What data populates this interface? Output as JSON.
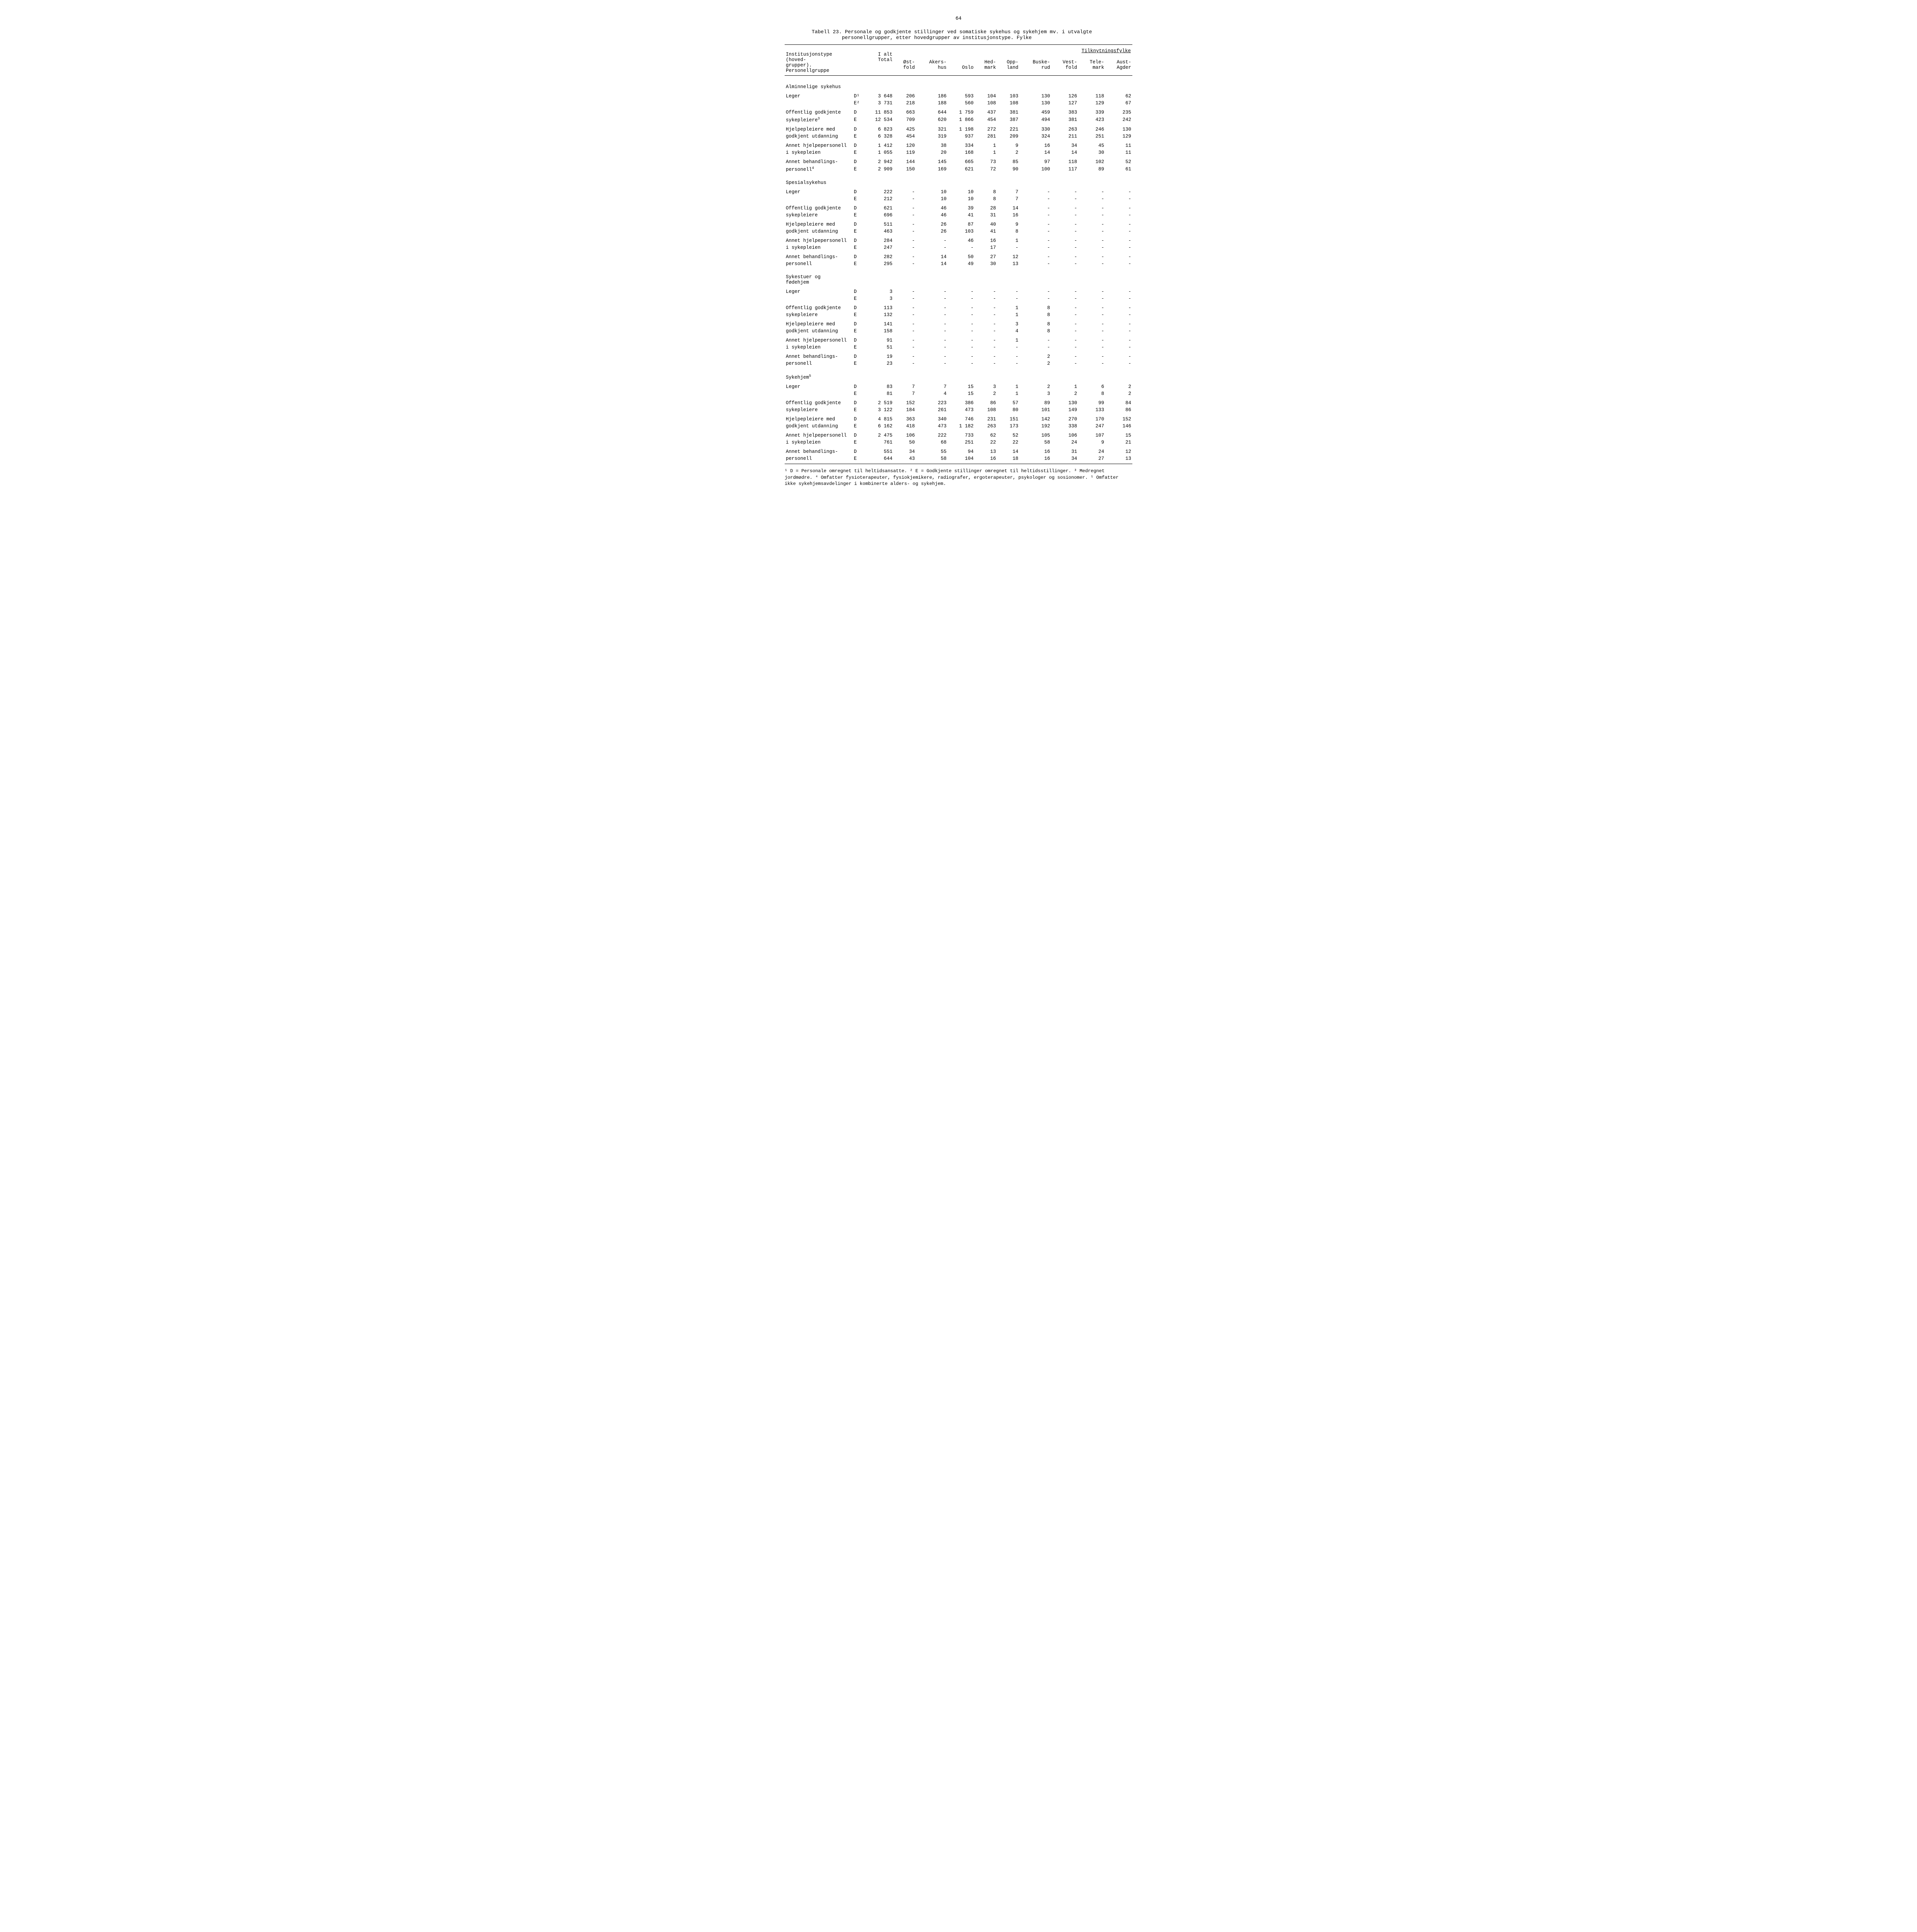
{
  "page_number": "64",
  "table_title_line1": "Tabell 23.  Personale og godkjente stillinger ved somatiske sykehus og sykehjem mv. i utvalgte",
  "table_title_line2": "personellgrupper, etter hovedgrupper av institusjonstype.  Fylke",
  "header": {
    "col1_line1": "Institusjonstype (hoved-",
    "col1_line2": "grupper). Personellgruppe",
    "col_ialt_line1": "I alt",
    "col_ialt_line2": "Total",
    "super_title": "Tilknytningsfylke",
    "cols": [
      {
        "l1": "Øst-",
        "l2": "fold"
      },
      {
        "l1": "Akers-",
        "l2": "hus"
      },
      {
        "l1": "",
        "l2": "Oslo"
      },
      {
        "l1": "Hed-",
        "l2": "mark"
      },
      {
        "l1": "Opp-",
        "l2": "land"
      },
      {
        "l1": "Buske-",
        "l2": "rud"
      },
      {
        "l1": "Vest-",
        "l2": "fold"
      },
      {
        "l1": "Tele-",
        "l2": "mark"
      },
      {
        "l1": "Aust-",
        "l2": "Agder"
      }
    ]
  },
  "de_labels": {
    "d": "D",
    "e": "E",
    "d1": "D¹",
    "e2": "E²"
  },
  "sections": [
    {
      "name": "Alminnelige sykehus",
      "groups": [
        {
          "label": "Leger",
          "sup": "",
          "de_d": "D¹",
          "de_e": "E²",
          "d": [
            "3 648",
            "206",
            "186",
            "593",
            "104",
            "103",
            "130",
            "126",
            "118",
            "62"
          ],
          "e": [
            "3 731",
            "218",
            "188",
            "560",
            "108",
            "108",
            "130",
            "127",
            "129",
            "67"
          ]
        },
        {
          "label": "Offentlig godkjente sykepleiere",
          "sup": "3",
          "de_d": "D",
          "de_e": "E",
          "d": [
            "11 853",
            "663",
            "644",
            "1 759",
            "437",
            "381",
            "459",
            "383",
            "339",
            "235"
          ],
          "e": [
            "12 534",
            "709",
            "620",
            "1 866",
            "454",
            "387",
            "494",
            "381",
            "423",
            "242"
          ]
        },
        {
          "label": "Hjelpepleiere med godkjent utdanning",
          "sup": "",
          "de_d": "D",
          "de_e": "E",
          "d": [
            "6 823",
            "425",
            "321",
            "1 198",
            "272",
            "221",
            "330",
            "263",
            "246",
            "130"
          ],
          "e": [
            "6 328",
            "454",
            "319",
            "937",
            "281",
            "209",
            "324",
            "211",
            "251",
            "129"
          ]
        },
        {
          "label": "Annet hjelpepersonell i sykepleien",
          "sup": "",
          "de_d": "D",
          "de_e": "E",
          "d": [
            "1 412",
            "120",
            "38",
            "334",
            "1",
            "9",
            "16",
            "34",
            "45",
            "11"
          ],
          "e": [
            "1 055",
            "119",
            "20",
            "168",
            "1",
            "2",
            "14",
            "14",
            "30",
            "11"
          ]
        },
        {
          "label": "Annet behandlings- personell",
          "sup": "4",
          "de_d": "D",
          "de_e": "E",
          "d": [
            "2 942",
            "144",
            "145",
            "665",
            "73",
            "85",
            "97",
            "118",
            "102",
            "52"
          ],
          "e": [
            "2 909",
            "150",
            "169",
            "621",
            "72",
            "90",
            "100",
            "117",
            "89",
            "61"
          ]
        }
      ]
    },
    {
      "name": "Spesialsykehus",
      "groups": [
        {
          "label": "Leger",
          "sup": "",
          "de_d": "D",
          "de_e": "E",
          "d": [
            "222",
            "-",
            "10",
            "10",
            "8",
            "7",
            "-",
            "-",
            "-",
            "-"
          ],
          "e": [
            "212",
            "-",
            "10",
            "10",
            "8",
            "7",
            "-",
            "-",
            "-",
            "-"
          ]
        },
        {
          "label": "Offentlig godkjente sykepleiere",
          "sup": "",
          "de_d": "D",
          "de_e": "E",
          "d": [
            "621",
            "-",
            "46",
            "39",
            "28",
            "14",
            "-",
            "-",
            "-",
            "-"
          ],
          "e": [
            "696",
            "-",
            "46",
            "41",
            "31",
            "16",
            "-",
            "-",
            "-",
            "-"
          ]
        },
        {
          "label": "Hjelpepleiere med godkjent utdanning",
          "sup": "",
          "de_d": "D",
          "de_e": "E",
          "d": [
            "511",
            "-",
            "26",
            "87",
            "40",
            "9",
            "-",
            "-",
            "-",
            "-"
          ],
          "e": [
            "463",
            "-",
            "26",
            "103",
            "41",
            "8",
            "-",
            "-",
            "-",
            "-"
          ]
        },
        {
          "label": "Annet hjelpepersonell i sykepleien",
          "sup": "",
          "de_d": "D",
          "de_e": "E",
          "d": [
            "284",
            "-",
            "-",
            "46",
            "16",
            "1",
            "-",
            "-",
            "-",
            "-"
          ],
          "e": [
            "247",
            "-",
            "-",
            "-",
            "17",
            "-",
            "-",
            "-",
            "-",
            "-"
          ]
        },
        {
          "label": "Annet behandlings- personell",
          "sup": "",
          "de_d": "D",
          "de_e": "E",
          "d": [
            "282",
            "-",
            "14",
            "50",
            "27",
            "12",
            "-",
            "-",
            "-",
            "-"
          ],
          "e": [
            "295",
            "-",
            "14",
            "49",
            "30",
            "13",
            "-",
            "-",
            "-",
            "-"
          ]
        }
      ]
    },
    {
      "name": "Sykestuer og fødehjem",
      "groups": [
        {
          "label": "Leger",
          "sup": "",
          "de_d": "D",
          "de_e": "E",
          "d": [
            "3",
            "-",
            "-",
            "-",
            "-",
            "-",
            "-",
            "-",
            "-",
            "-"
          ],
          "e": [
            "3",
            "-",
            "-",
            "-",
            "-",
            "-",
            "-",
            "-",
            "-",
            "-"
          ]
        },
        {
          "label": "Offentlig godkjente sykepleiere",
          "sup": "",
          "de_d": "D",
          "de_e": "E",
          "d": [
            "113",
            "-",
            "-",
            "-",
            "-",
            "1",
            "8",
            "-",
            "-",
            "-"
          ],
          "e": [
            "132",
            "-",
            "-",
            "-",
            "-",
            "1",
            "8",
            "-",
            "-",
            "-"
          ]
        },
        {
          "label": "Hjelpepleiere med godkjent utdanning",
          "sup": "",
          "de_d": "D",
          "de_e": "E",
          "d": [
            "141",
            "-",
            "-",
            "-",
            "-",
            "3",
            "8",
            "-",
            "-",
            "-"
          ],
          "e": [
            "158",
            "-",
            "-",
            "-",
            "-",
            "4",
            "8",
            "-",
            "-",
            "-"
          ]
        },
        {
          "label": "Annet hjelpepersonell i sykepleien",
          "sup": "",
          "de_d": "D",
          "de_e": "E",
          "d": [
            "91",
            "-",
            "-",
            "-",
            "-",
            "1",
            "-",
            "-",
            "-",
            "-"
          ],
          "e": [
            "51",
            "-",
            "-",
            "-",
            "-",
            "-",
            "-",
            "-",
            "-",
            "-"
          ]
        },
        {
          "label": "Annet behandlings- personell",
          "sup": "",
          "de_d": "D",
          "de_e": "E",
          "d": [
            "19",
            "-",
            "-",
            "-",
            "-",
            "-",
            "2",
            "-",
            "-",
            "-"
          ],
          "e": [
            "23",
            "-",
            "-",
            "-",
            "-",
            "-",
            "2",
            "-",
            "-",
            "-"
          ]
        }
      ]
    },
    {
      "name": "Sykehjem",
      "name_sup": "5",
      "groups": [
        {
          "label": "Leger",
          "sup": "",
          "de_d": "D",
          "de_e": "E",
          "d": [
            "83",
            "7",
            "7",
            "15",
            "3",
            "1",
            "2",
            "1",
            "6",
            "2"
          ],
          "e": [
            "81",
            "7",
            "4",
            "15",
            "2",
            "1",
            "3",
            "2",
            "8",
            "2"
          ]
        },
        {
          "label": "Offentlig godkjente sykepleiere",
          "sup": "",
          "de_d": "D",
          "de_e": "E",
          "d": [
            "2 519",
            "152",
            "223",
            "386",
            "86",
            "57",
            "89",
            "130",
            "99",
            "84"
          ],
          "e": [
            "3 122",
            "184",
            "261",
            "473",
            "108",
            "80",
            "101",
            "149",
            "133",
            "86"
          ]
        },
        {
          "label": "Hjelpepleiere med godkjent utdanning",
          "sup": "",
          "de_d": "D",
          "de_e": "E",
          "d": [
            "4 815",
            "363",
            "340",
            "746",
            "231",
            "151",
            "142",
            "270",
            "170",
            "152"
          ],
          "e": [
            "6 162",
            "418",
            "473",
            "1 182",
            "263",
            "173",
            "192",
            "338",
            "247",
            "146"
          ]
        },
        {
          "label": "Annet hjelpepersonell i sykepleien",
          "sup": "",
          "de_d": "D",
          "de_e": "E",
          "d": [
            "2 475",
            "106",
            "222",
            "733",
            "62",
            "52",
            "105",
            "106",
            "107",
            "15"
          ],
          "e": [
            "761",
            "50",
            "68",
            "251",
            "22",
            "22",
            "58",
            "24",
            "9",
            "21"
          ]
        },
        {
          "label": "Annet behandlings- personell",
          "sup": "",
          "de_d": "D",
          "de_e": "E",
          "d": [
            "551",
            "34",
            "55",
            "94",
            "13",
            "14",
            "16",
            "31",
            "24",
            "12"
          ],
          "e": [
            "644",
            "43",
            "58",
            "104",
            "16",
            "18",
            "16",
            "34",
            "27",
            "13"
          ]
        }
      ]
    }
  ],
  "footnotes": "¹ D = Personale omregnet til heltidsansatte.  ² E = Godkjente stillinger omregnet til heltidsstillinger.  ³ Medregnet jordmødre.  ⁴ Omfatter fysioterapeuter, fysiokjemikere, radiografer, ergoterapeuter, psykologer og sosionomer.  ⁵ Omfatter ikke sykehjemsavdelinger i kombinerte alders- og sykehjem."
}
